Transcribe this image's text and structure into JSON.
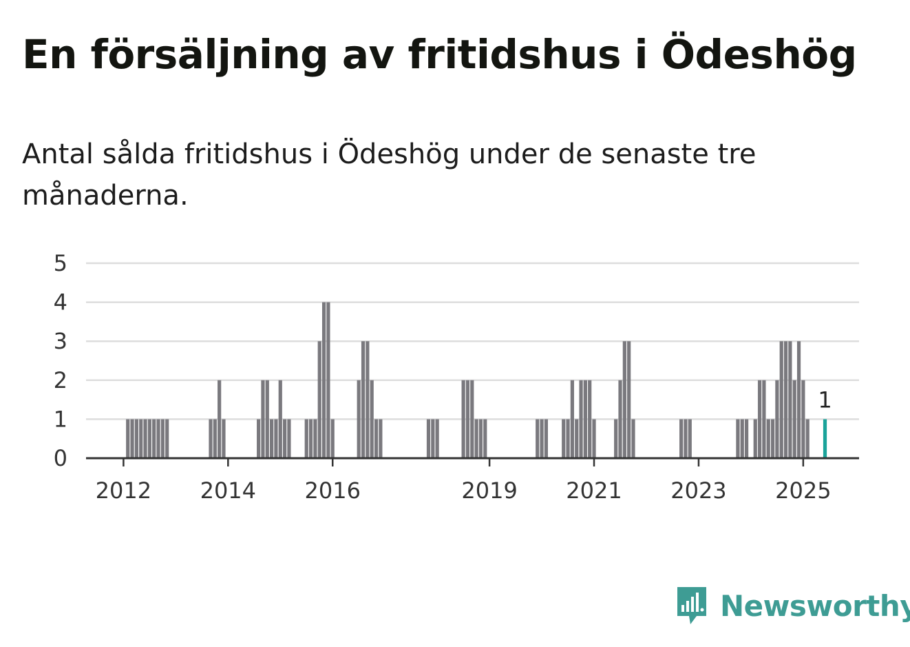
{
  "title": "En försäljning av fritidshus i Ödeshög",
  "subtitle": "Antal sålda fritidshus i Ödeshög under de senaste tre månaderna.",
  "brand": {
    "name": "Newsworthy",
    "icon": "newsworthy-logo-icon",
    "color": "#3e9c94"
  },
  "chart_data": {
    "type": "bar",
    "title": "",
    "xlabel": "",
    "ylabel": "",
    "ylim": [
      0,
      5
    ],
    "yticks": [
      0,
      1,
      2,
      3,
      4,
      5
    ],
    "xticks": [
      "2012",
      "2014",
      "2016",
      "2019",
      "2021",
      "2023",
      "2025"
    ],
    "grid": true,
    "bar_color": "#7a797e",
    "highlight_color": "#1aa39a",
    "highlight_label": "1",
    "series": [
      {
        "x": [
          "2012-02",
          "2012-03",
          "2012-04",
          "2012-05",
          "2012-06",
          "2012-07",
          "2012-08",
          "2012-09",
          "2012-10",
          "2012-11",
          "2013-09",
          "2013-10",
          "2013-11",
          "2013-12",
          "2014-08",
          "2014-09",
          "2014-10",
          "2014-11",
          "2014-12",
          "2015-01",
          "2015-02",
          "2015-03",
          "2015-07",
          "2015-08",
          "2015-09",
          "2015-10",
          "2015-11",
          "2015-12",
          "2016-01",
          "2016-07",
          "2016-08",
          "2016-09",
          "2016-10",
          "2016-11",
          "2016-12",
          "2017-11",
          "2017-12",
          "2018-01",
          "2018-07",
          "2018-08",
          "2018-09",
          "2018-10",
          "2018-11",
          "2018-12",
          "2019-12",
          "2020-01",
          "2020-02",
          "2020-06",
          "2020-07",
          "2020-08",
          "2020-09",
          "2020-10",
          "2020-11",
          "2020-12",
          "2021-01",
          "2021-06",
          "2021-07",
          "2021-08",
          "2021-09",
          "2021-10",
          "2022-09",
          "2022-10",
          "2022-11",
          "2023-10",
          "2023-11",
          "2023-12",
          "2024-02",
          "2024-03",
          "2024-04",
          "2024-05",
          "2024-06",
          "2024-07",
          "2024-08",
          "2024-09",
          "2024-10",
          "2024-11",
          "2024-12",
          "2025-01",
          "2025-02",
          "2025-06"
        ],
        "values": [
          1,
          1,
          1,
          1,
          1,
          1,
          1,
          1,
          1,
          1,
          1,
          1,
          2,
          1,
          1,
          2,
          2,
          1,
          1,
          2,
          1,
          1,
          1,
          1,
          1,
          3,
          4,
          4,
          1,
          2,
          3,
          3,
          2,
          1,
          1,
          1,
          1,
          1,
          2,
          2,
          2,
          1,
          1,
          1,
          1,
          1,
          1,
          1,
          1,
          2,
          1,
          2,
          2,
          2,
          1,
          1,
          2,
          3,
          3,
          1,
          1,
          1,
          1,
          1,
          1,
          1,
          1,
          2,
          2,
          1,
          1,
          2,
          3,
          3,
          3,
          2,
          3,
          2,
          1,
          1
        ]
      }
    ]
  }
}
